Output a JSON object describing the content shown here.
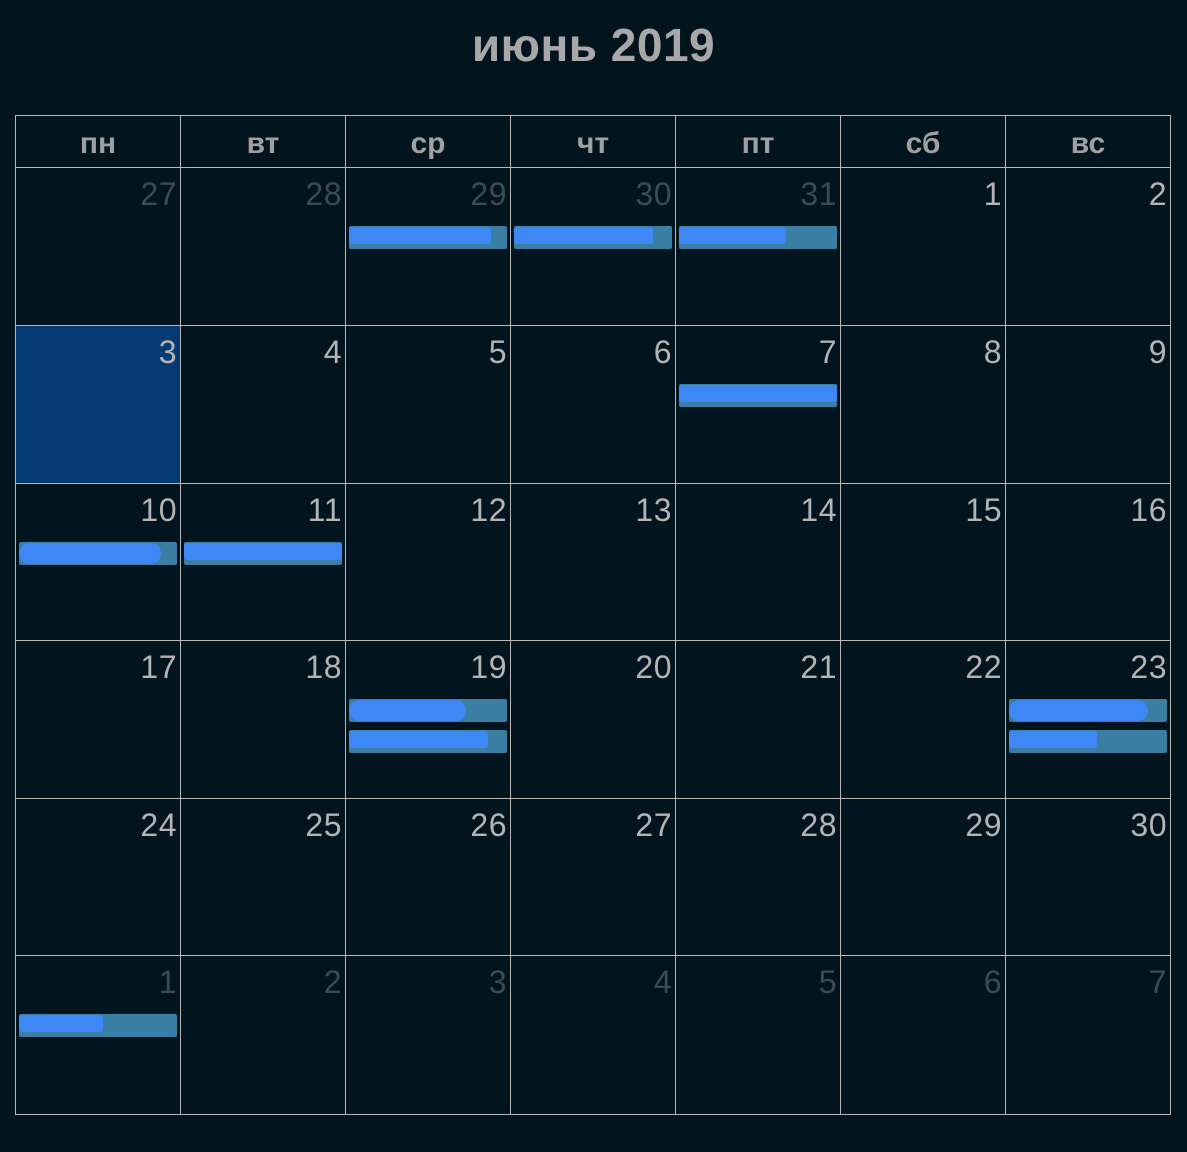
{
  "title": "июнь 2019",
  "weekdays": [
    "пн",
    "вт",
    "ср",
    "чт",
    "пт",
    "сб",
    "вс"
  ],
  "weeks": [
    [
      {
        "day": "27",
        "other": true,
        "today": false,
        "events": []
      },
      {
        "day": "28",
        "other": true,
        "today": false,
        "events": []
      },
      {
        "day": "29",
        "other": true,
        "today": false,
        "events": [
          {
            "label": "",
            "redacted": 0.9,
            "oval": false
          }
        ]
      },
      {
        "day": "30",
        "other": true,
        "today": false,
        "events": [
          {
            "label": "",
            "redacted": 0.88,
            "oval": false
          }
        ]
      },
      {
        "day": "31",
        "other": true,
        "today": false,
        "events": [
          {
            "label": "",
            "redacted": 0.68,
            "oval": false
          }
        ]
      },
      {
        "day": "1",
        "other": false,
        "today": false,
        "events": []
      },
      {
        "day": "2",
        "other": false,
        "today": false,
        "events": []
      }
    ],
    [
      {
        "day": "3",
        "other": false,
        "today": true,
        "events": []
      },
      {
        "day": "4",
        "other": false,
        "today": false,
        "events": []
      },
      {
        "day": "5",
        "other": false,
        "today": false,
        "events": []
      },
      {
        "day": "6",
        "other": false,
        "today": false,
        "events": []
      },
      {
        "day": "7",
        "other": false,
        "today": false,
        "events": [
          {
            "label": "",
            "redacted": 1.0,
            "oval": false
          }
        ]
      },
      {
        "day": "8",
        "other": false,
        "today": false,
        "events": []
      },
      {
        "day": "9",
        "other": false,
        "today": false,
        "events": []
      }
    ],
    [
      {
        "day": "10",
        "other": false,
        "today": false,
        "events": [
          {
            "label": "",
            "redacted": 0.9,
            "oval": true
          }
        ]
      },
      {
        "day": "11",
        "other": false,
        "today": false,
        "events": [
          {
            "label": "",
            "redacted": 1.0,
            "oval": false
          }
        ]
      },
      {
        "day": "12",
        "other": false,
        "today": false,
        "events": []
      },
      {
        "day": "13",
        "other": false,
        "today": false,
        "events": []
      },
      {
        "day": "14",
        "other": false,
        "today": false,
        "events": []
      },
      {
        "day": "15",
        "other": false,
        "today": false,
        "events": []
      },
      {
        "day": "16",
        "other": false,
        "today": false,
        "events": []
      }
    ],
    [
      {
        "day": "17",
        "other": false,
        "today": false,
        "events": []
      },
      {
        "day": "18",
        "other": false,
        "today": false,
        "events": []
      },
      {
        "day": "19",
        "other": false,
        "today": false,
        "events": [
          {
            "label": "",
            "redacted": 0.74,
            "oval": true
          },
          {
            "label": "",
            "redacted": 0.88,
            "oval": false
          }
        ]
      },
      {
        "day": "20",
        "other": false,
        "today": false,
        "events": []
      },
      {
        "day": "21",
        "other": false,
        "today": false,
        "events": []
      },
      {
        "day": "22",
        "other": false,
        "today": false,
        "events": []
      },
      {
        "day": "23",
        "other": false,
        "today": false,
        "events": [
          {
            "label": "",
            "redacted": 0.88,
            "oval": true
          },
          {
            "label": "",
            "redacted": 0.56,
            "oval": false
          }
        ]
      }
    ],
    [
      {
        "day": "24",
        "other": false,
        "today": false,
        "events": []
      },
      {
        "day": "25",
        "other": false,
        "today": false,
        "events": []
      },
      {
        "day": "26",
        "other": false,
        "today": false,
        "events": []
      },
      {
        "day": "27",
        "other": false,
        "today": false,
        "events": []
      },
      {
        "day": "28",
        "other": false,
        "today": false,
        "events": []
      },
      {
        "day": "29",
        "other": false,
        "today": false,
        "events": []
      },
      {
        "day": "30",
        "other": false,
        "today": false,
        "events": []
      }
    ],
    [
      {
        "day": "1",
        "other": true,
        "today": false,
        "events": [
          {
            "label": "",
            "redacted": 0.53,
            "oval": false
          }
        ]
      },
      {
        "day": "2",
        "other": true,
        "today": false,
        "events": []
      },
      {
        "day": "3",
        "other": true,
        "today": false,
        "events": []
      },
      {
        "day": "4",
        "other": true,
        "today": false,
        "events": []
      },
      {
        "day": "5",
        "other": true,
        "today": false,
        "events": []
      },
      {
        "day": "6",
        "other": true,
        "today": false,
        "events": []
      },
      {
        "day": "7",
        "other": true,
        "today": false,
        "events": []
      }
    ]
  ],
  "colors": {
    "background": "#02141d",
    "grid": "#b8b8b8",
    "today": "#053a73",
    "event": "#3a7fa3",
    "redaction": "#3d88f5"
  }
}
